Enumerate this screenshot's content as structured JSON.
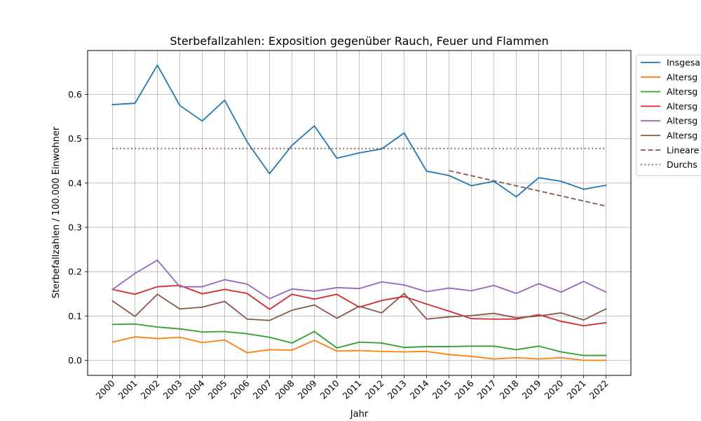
{
  "chart_data": {
    "type": "line",
    "title": "Sterbefallzahlen: Exposition gegenüber Rauch, Feuer und Flammen",
    "xlabel": "Jahr",
    "ylabel": "Sterbefallzahlen / 100.000 Einwohner",
    "categories": [
      "2000",
      "2001",
      "2002",
      "2003",
      "2004",
      "2005",
      "2006",
      "2007",
      "2008",
      "2009",
      "2010",
      "2011",
      "2012",
      "2013",
      "2014",
      "2015",
      "2016",
      "2017",
      "2018",
      "2019",
      "2020",
      "2021",
      "2022"
    ],
    "yticks": [
      "0.0",
      "0.1",
      "0.2",
      "0.3",
      "0.4",
      "0.5",
      "0.6"
    ],
    "ylim": [
      -0.034,
      0.699
    ],
    "grid": true,
    "legend_position": "right (outside, top)",
    "series": [
      {
        "name": "Insgesa",
        "color": "#1f77b4",
        "dash": "solid",
        "values": [
          0.577,
          0.58,
          0.666,
          0.575,
          0.54,
          0.587,
          0.493,
          0.421,
          0.485,
          0.529,
          0.456,
          0.468,
          0.477,
          0.513,
          0.427,
          0.417,
          0.394,
          0.404,
          0.369,
          0.412,
          0.404,
          0.386,
          0.395
        ]
      },
      {
        "name": "Altersg",
        "color": "#ff7f0e",
        "dash": "solid",
        "values": [
          0.041,
          0.053,
          0.049,
          0.052,
          0.04,
          0.046,
          0.017,
          0.024,
          0.023,
          0.045,
          0.021,
          0.022,
          0.02,
          0.019,
          0.02,
          0.013,
          0.009,
          0.003,
          0.006,
          0.003,
          0.006,
          0.0,
          0.0
        ]
      },
      {
        "name": "Altersg",
        "color": "#2ca02c",
        "dash": "solid",
        "values": [
          0.081,
          0.082,
          0.075,
          0.071,
          0.064,
          0.065,
          0.06,
          0.052,
          0.039,
          0.065,
          0.028,
          0.041,
          0.039,
          0.029,
          0.031,
          0.031,
          0.032,
          0.032,
          0.024,
          0.032,
          0.019,
          0.011,
          0.011
        ]
      },
      {
        "name": "Altersg",
        "color": "#d62728",
        "dash": "solid",
        "values": [
          0.16,
          0.149,
          0.166,
          0.169,
          0.15,
          0.16,
          0.151,
          0.115,
          0.149,
          0.138,
          0.149,
          0.12,
          0.135,
          0.144,
          0.127,
          0.111,
          0.094,
          0.093,
          0.093,
          0.103,
          0.088,
          0.078,
          0.085
        ]
      },
      {
        "name": "Altersg",
        "color": "#9467bd",
        "dash": "solid",
        "values": [
          0.16,
          0.196,
          0.226,
          0.166,
          0.166,
          0.182,
          0.172,
          0.139,
          0.161,
          0.156,
          0.164,
          0.162,
          0.177,
          0.17,
          0.155,
          0.163,
          0.157,
          0.169,
          0.151,
          0.173,
          0.154,
          0.178,
          0.154
        ]
      },
      {
        "name": "Altersg",
        "color": "#8c564b",
        "dash": "solid",
        "values": [
          0.134,
          0.099,
          0.149,
          0.116,
          0.12,
          0.133,
          0.093,
          0.09,
          0.113,
          0.125,
          0.095,
          0.122,
          0.107,
          0.151,
          0.093,
          0.098,
          0.101,
          0.106,
          0.096,
          0.1,
          0.107,
          0.091,
          0.116
        ]
      },
      {
        "name": "Lineare",
        "color": "#8c564b",
        "dash": "dashed",
        "x": [
          "2015",
          "2022"
        ],
        "values": [
          0.428,
          0.348
        ]
      },
      {
        "name": "Durchs",
        "color": "#8c564b",
        "dash": "dotted",
        "x": [
          "2000",
          "2022"
        ],
        "values": [
          0.478,
          0.478
        ]
      }
    ]
  }
}
